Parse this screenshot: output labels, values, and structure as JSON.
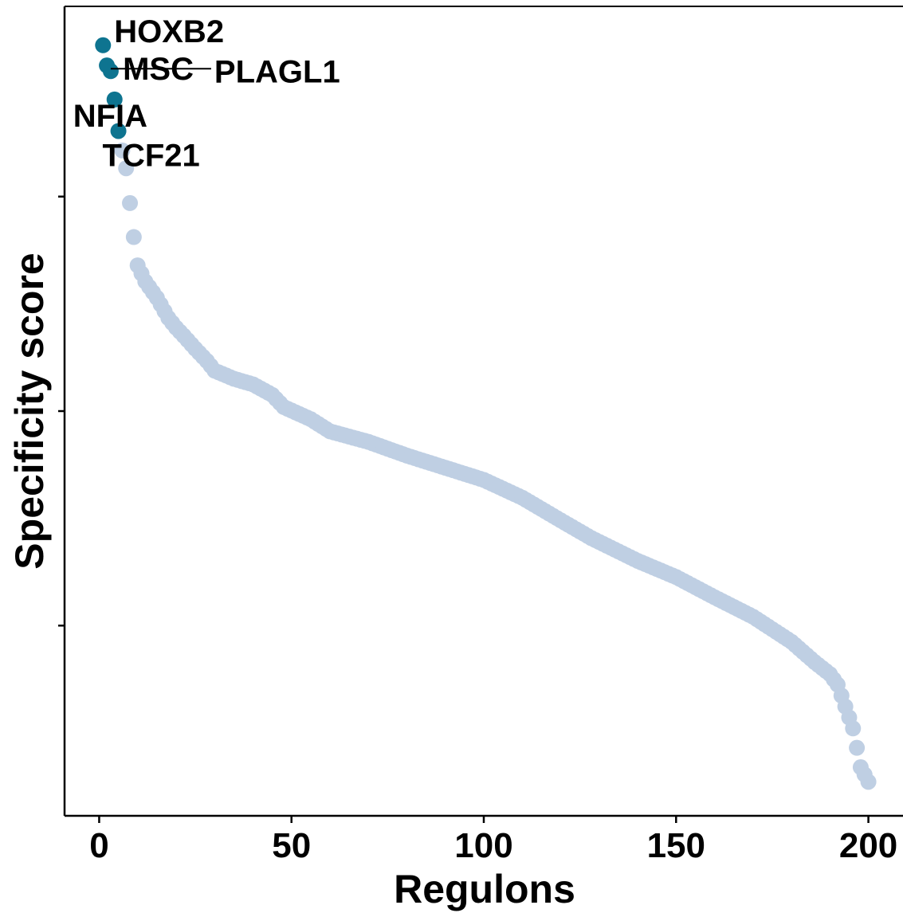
{
  "chart_data": {
    "type": "scatter",
    "xlabel": "Regulons",
    "ylabel": "Specificity score",
    "xlim": [
      -9,
      209
    ],
    "ylim": [
      0,
      1
    ],
    "x_ticks": [
      0,
      50,
      100,
      150,
      200
    ],
    "y_ticks_labeled": false,
    "y_tick_values": [
      0.235,
      0.5,
      0.765
    ],
    "grid": false,
    "legend": "none",
    "colors": {
      "highlight": "#0e7490",
      "background_points": "#bfcfe3"
    },
    "highlighted": [
      {
        "label": "HOXB2",
        "x": 1,
        "y": 0.952
      },
      {
        "label": "MSC",
        "x": 2,
        "y": 0.927
      },
      {
        "label": "PLAGL1",
        "x": 3,
        "y": 0.92
      },
      {
        "label": "NFIA",
        "x": 4,
        "y": 0.885
      },
      {
        "label": "TCF21",
        "x": 5,
        "y": 0.846
      }
    ],
    "curve_anchors": [
      [
        6,
        0.822
      ],
      [
        7,
        0.8
      ],
      [
        8,
        0.757
      ],
      [
        9,
        0.715
      ],
      [
        10,
        0.68
      ],
      [
        12,
        0.66
      ],
      [
        15,
        0.64
      ],
      [
        18,
        0.615
      ],
      [
        20,
        0.603
      ],
      [
        22,
        0.593
      ],
      [
        25,
        0.577
      ],
      [
        28,
        0.562
      ],
      [
        30,
        0.55
      ],
      [
        35,
        0.54
      ],
      [
        40,
        0.533
      ],
      [
        45,
        0.52
      ],
      [
        48,
        0.505
      ],
      [
        55,
        0.49
      ],
      [
        60,
        0.475
      ],
      [
        70,
        0.462
      ],
      [
        80,
        0.445
      ],
      [
        90,
        0.43
      ],
      [
        100,
        0.415
      ],
      [
        110,
        0.393
      ],
      [
        120,
        0.365
      ],
      [
        128,
        0.343
      ],
      [
        140,
        0.315
      ],
      [
        150,
        0.295
      ],
      [
        160,
        0.27
      ],
      [
        170,
        0.246
      ],
      [
        180,
        0.215
      ],
      [
        186,
        0.19
      ],
      [
        190,
        0.175
      ],
      [
        192,
        0.162
      ],
      [
        194,
        0.135
      ],
      [
        196,
        0.108
      ],
      [
        198,
        0.06
      ],
      [
        200,
        0.042
      ]
    ]
  }
}
